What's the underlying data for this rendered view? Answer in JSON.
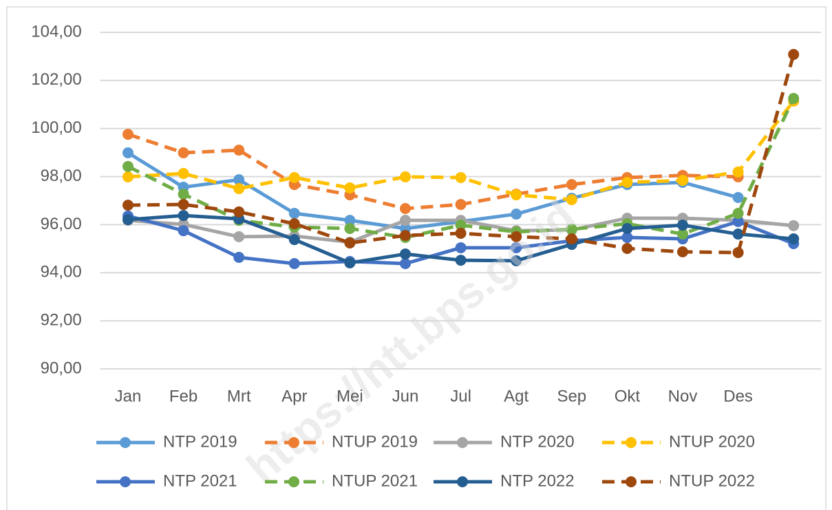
{
  "chart_data": {
    "type": "line",
    "categories": [
      "Jan",
      "Feb",
      "Mrt",
      "Apr",
      "Mei",
      "Jun",
      "Jul",
      "Agt",
      "Sep",
      "Okt",
      "Nov",
      "Des",
      null
    ],
    "series": [
      {
        "name": "NTP 2019",
        "color": "#5b9bd5",
        "dashed": false,
        "values": [
          98.99,
          97.56,
          97.87,
          96.47,
          96.18,
          95.84,
          96.13,
          96.44,
          97.1,
          97.67,
          97.76,
          97.13,
          null
        ]
      },
      {
        "name": "NTUP 2019",
        "color": "#ed7d31",
        "dashed": true,
        "values": [
          99.76,
          98.99,
          99.1,
          97.67,
          97.24,
          96.67,
          96.84,
          97.27,
          97.67,
          97.96,
          98.05,
          97.99,
          null
        ]
      },
      {
        "name": "NTP 2020",
        "color": "#a5a5a5",
        "dashed": false,
        "values": [
          96.18,
          96.01,
          95.5,
          95.53,
          95.27,
          96.18,
          96.18,
          95.75,
          95.78,
          96.27,
          96.27,
          96.18,
          95.96
        ]
      },
      {
        "name": "NTUP 2020",
        "color": "#ffc000",
        "dashed": true,
        "values": [
          97.99,
          98.13,
          97.5,
          97.96,
          97.53,
          97.99,
          97.96,
          97.24,
          97.04,
          97.76,
          97.84,
          98.19,
          101.14
        ]
      },
      {
        "name": "NTP 2021",
        "color": "#4472c4",
        "dashed": false,
        "values": [
          96.36,
          95.75,
          94.64,
          94.38,
          94.47,
          94.38,
          95.04,
          95.04,
          95.33,
          95.47,
          95.41,
          96.13,
          95.21
        ]
      },
      {
        "name": "NTUP 2021",
        "color": "#70ad47",
        "dashed": true,
        "values": [
          98.42,
          97.27,
          96.18,
          95.9,
          95.84,
          95.47,
          95.98,
          95.7,
          95.81,
          96.04,
          95.61,
          96.47,
          101.25
        ]
      },
      {
        "name": "NTP 2022",
        "color": "#255e91",
        "dashed": false,
        "values": [
          96.21,
          96.38,
          96.24,
          95.38,
          94.41,
          94.78,
          94.52,
          94.5,
          95.18,
          95.84,
          95.98,
          95.61,
          95.41
        ]
      },
      {
        "name": "NTUP 2022",
        "color": "#9e480e",
        "dashed": true,
        "values": [
          96.81,
          96.84,
          96.53,
          96.04,
          95.24,
          95.55,
          95.64,
          95.5,
          95.41,
          95.01,
          94.87,
          94.84,
          103.08
        ]
      }
    ],
    "ylim": [
      90,
      104
    ],
    "yticks": [
      {
        "value": 90,
        "label": "90,00"
      },
      {
        "value": 92,
        "label": "92,00"
      },
      {
        "value": 94,
        "label": "94,00"
      },
      {
        "value": 96,
        "label": "96,00"
      },
      {
        "value": 98,
        "label": "98,00"
      },
      {
        "value": 100,
        "label": "100,00"
      },
      {
        "value": 102,
        "label": "102,00"
      },
      {
        "value": 104,
        "label": "104,00"
      }
    ],
    "grid": true,
    "legend": "bottom",
    "watermark": "https://ntt.bps.go.id"
  }
}
